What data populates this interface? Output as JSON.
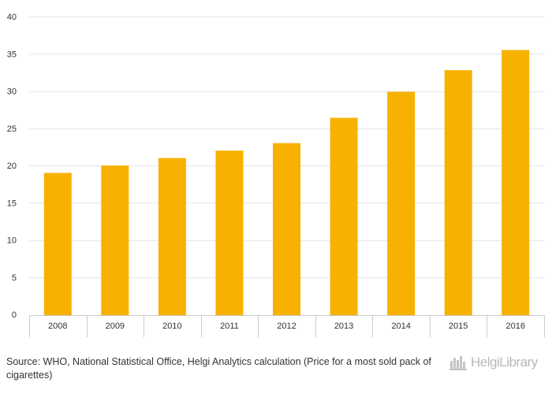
{
  "chart_data": {
    "type": "bar",
    "categories": [
      "2008",
      "2009",
      "2010",
      "2011",
      "2012",
      "2013",
      "2014",
      "2015",
      "2016"
    ],
    "values": [
      19.0,
      20.0,
      21.0,
      22.0,
      23.0,
      26.4,
      29.9,
      32.8,
      35.5
    ],
    "ylim": [
      0,
      40
    ],
    "yticks": [
      0,
      5,
      10,
      15,
      20,
      25,
      30,
      35,
      40
    ],
    "grid": true,
    "bar_color": "#f7b100",
    "title": "",
    "xlabel": "",
    "ylabel": ""
  },
  "source": {
    "text": "Source: WHO, National Statistical Office, Helgi Analytics calculation (Price for a most sold pack of cigarettes)"
  },
  "logo": {
    "text": "HelgiLibrary",
    "icon": "helgi-library-icon"
  }
}
